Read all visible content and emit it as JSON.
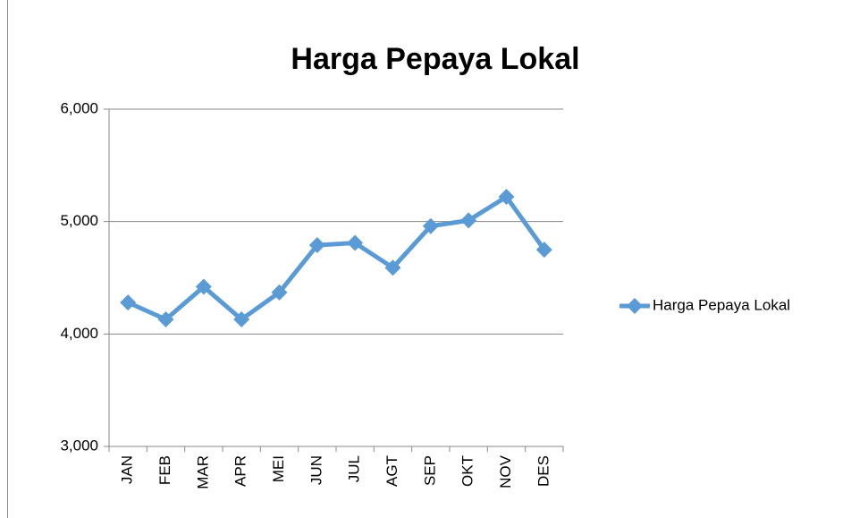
{
  "chart_data": {
    "type": "line",
    "title": "Harga Pepaya Lokal",
    "categories": [
      "JAN",
      "FEB",
      "MAR",
      "APR",
      "MEI",
      "JUN",
      "JUL",
      "AGT",
      "SEP",
      "OKT",
      "NOV",
      "DES"
    ],
    "series": [
      {
        "name": "Harga Pepaya Lokal",
        "color": "#5b9bd5",
        "values": [
          4280,
          4130,
          4420,
          4130,
          4370,
          4790,
          4810,
          4590,
          4960,
          5010,
          5220,
          4750
        ]
      }
    ],
    "ylim": [
      3000,
      6000
    ],
    "yticks": [
      {
        "value": 3000,
        "label": "3,000"
      },
      {
        "value": 4000,
        "label": "4,000"
      },
      {
        "value": 5000,
        "label": "5,000"
      },
      {
        "value": 6000,
        "label": "6,000"
      }
    ],
    "grid": true,
    "legend": "right"
  }
}
